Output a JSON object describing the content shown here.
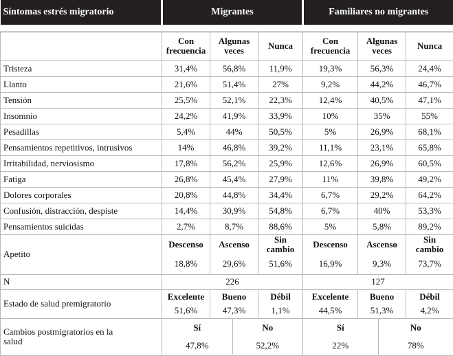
{
  "header": {
    "label": "Síntomas estrés migratorio",
    "groups": [
      "Migrantes",
      "Familiares no migrantes"
    ]
  },
  "subheader": [
    "Con frecuencia",
    "Algunas veces",
    "Nunca",
    "Con frecuencia",
    "Algunas veces",
    "Nunca"
  ],
  "symptoms": [
    {
      "label": "Tristeza",
      "values": [
        "31,4%",
        "56,8%",
        "11,9%",
        "19,3%",
        "56,3%",
        "24,4%"
      ]
    },
    {
      "label": "Llanto",
      "values": [
        "21,6%",
        "51,4%",
        "27%",
        "9,2%",
        "44,2%",
        "46,7%"
      ]
    },
    {
      "label": "Tensión",
      "values": [
        "25,5%",
        "52,1%",
        "22,3%",
        "12,4%",
        "40,5%",
        "47,1%"
      ]
    },
    {
      "label": "Insomnio",
      "values": [
        "24,2%",
        "41,9%",
        "33,9%",
        "10%",
        "35%",
        "55%"
      ]
    },
    {
      "label": "Pesadillas",
      "values": [
        "5,4%",
        "44%",
        "50,5%",
        "5%",
        "26,9%",
        "68,1%"
      ]
    },
    {
      "label": "Pensamientos repetitivos, intrusivos",
      "values": [
        "14%",
        "46,8%",
        "39,2%",
        "11,1%",
        "23,1%",
        "65,8%"
      ]
    },
    {
      "label": "Irritabilidad, nerviosismo",
      "values": [
        "17,8%",
        "56,2%",
        "25,9%",
        "12,6%",
        "26,9%",
        "60,5%"
      ]
    },
    {
      "label": "Fatiga",
      "values": [
        "26,8%",
        "45,4%",
        "27,9%",
        "11%",
        "39,8%",
        "49,2%"
      ]
    },
    {
      "label": "Dolores corporales",
      "values": [
        "20,8%",
        "44,8%",
        "34,4%",
        "6,7%",
        "29,2%",
        "64,2%"
      ]
    },
    {
      "label": "Confusión, distracción, despiste",
      "values": [
        "14,4%",
        "30,9%",
        "54,8%",
        "6,7%",
        "40%",
        "53,3%"
      ]
    },
    {
      "label": "Pensamientos suicidas",
      "values": [
        "2,7%",
        "8,7%",
        "88,6%",
        "5%",
        "5,8%",
        "89,2%"
      ]
    }
  ],
  "appetite": {
    "label": "Apetito",
    "columns": [
      "Descenso",
      "Ascenso",
      "Sin cambio",
      "Descenso",
      "Ascenso",
      "Sin cambio"
    ],
    "values": [
      "18,8%",
      "29,6%",
      "51,6%",
      "16,9%",
      "9,3%",
      "73,7%"
    ]
  },
  "n": {
    "label": "N",
    "values": [
      "226",
      "127"
    ]
  },
  "health": {
    "label": "Estado de salud premigratorio",
    "columns": [
      "Excelente",
      "Bueno",
      "Débil",
      "Excelente",
      "Bueno",
      "Débil"
    ],
    "values": [
      "51,6%",
      "47,3%",
      "1,1%",
      "44,5%",
      "51,3%",
      "4,2%"
    ]
  },
  "changes": {
    "label": "Cambios postmigratorios en la salud",
    "columns": [
      "Sí",
      "No",
      "Sí",
      "No"
    ],
    "values": [
      "47,8%",
      "52,2%",
      "22%",
      "78%"
    ]
  }
}
